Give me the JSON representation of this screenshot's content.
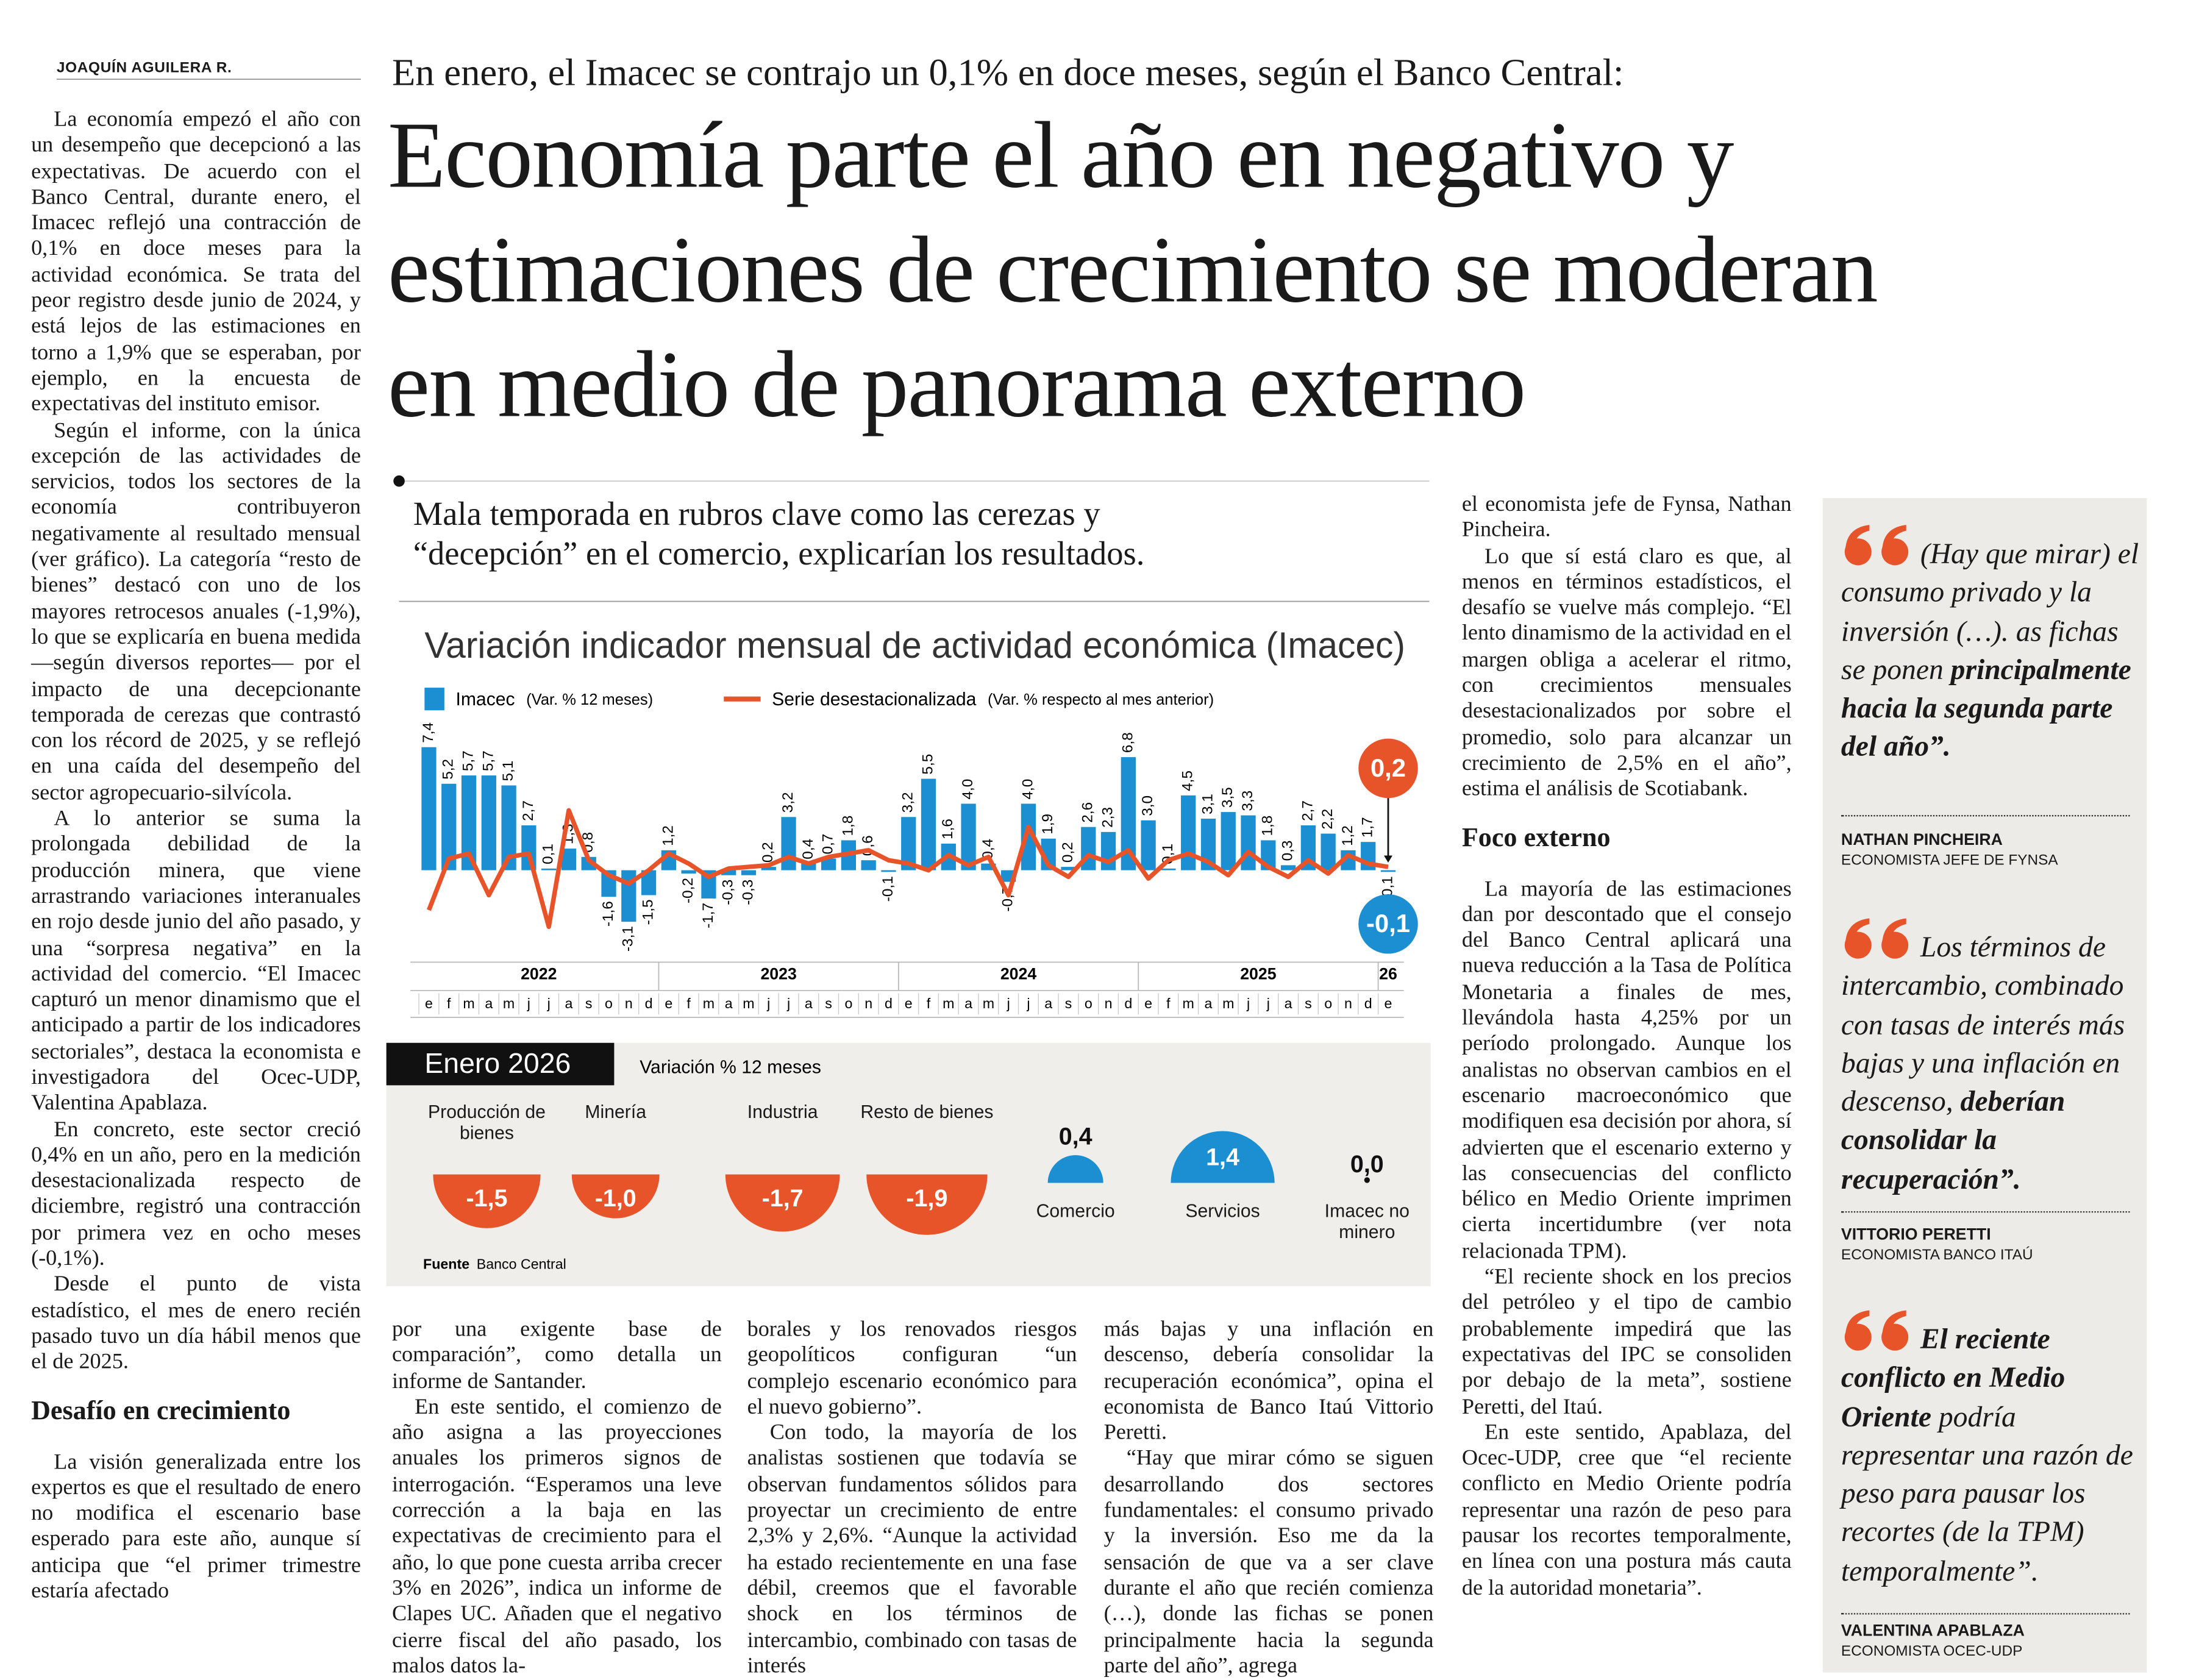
{
  "byline": "JOAQUÍN AGUILERA R.",
  "kicker": "En enero, el Imacec se contrajo un 0,1% en doce meses, según el Banco Central:",
  "headline_lines": [
    "Economía parte el año en negativo y",
    "estimaciones de crecimiento se moderan",
    "en medio de panorama externo"
  ],
  "deck_lines": [
    "Mala temporada en rubros clave como las cerezas y",
    "“decepción” en el comercio, explicarían los resultados."
  ],
  "columns": [
    {
      "blocks": [
        {
          "kind": "p",
          "text": "La economía empezó el año con un desempeño que decepcionó a las expectativas. De acuerdo con el Banco Central, durante enero, el Imacec reflejó una contracción de 0,1% en doce meses para la actividad económica. Se trata del peor registro desde junio de 2024, y está lejos de las estimaciones en torno a 1,9% que se esperaban, por ejemplo, en la encuesta de expectativas del instituto emisor."
        },
        {
          "kind": "p",
          "text": "Según el informe, con la única excepción de las actividades de servicios, todos los sectores de la economía contribuyeron negativamente al resultado mensual (ver gráfico). La categoría “resto de bienes” destacó con uno de los mayores retrocesos anuales (-1,9%), lo que se explicaría en buena medida —según diversos reportes— por el impacto de una decepcionante temporada de cerezas que contrastó con los récord de 2025, y se reflejó en una caída del desempeño del sector agropecuario-silvícola."
        },
        {
          "kind": "p",
          "text": "A lo anterior se suma la prolongada debilidad de la producción minera, que viene arrastrando variaciones interanuales en rojo desde junio del año pasado, y una “sorpresa negativa” en la actividad del comercio. “El Imacec capturó un menor dinamismo que el anticipado a partir de los indicadores sectoriales”, destaca la economista e investigadora del Ocec-UDP, Valentina Apablaza."
        },
        {
          "kind": "p",
          "text": "En concreto, este sector creció 0,4% en un año, pero en la medición desestacionalizada respecto de diciembre, registró una contracción por primera vez en ocho meses (-0,1%)."
        },
        {
          "kind": "p",
          "text": "Desde el punto de vista estadístico, el mes de enero recién pasado tuvo un día hábil menos que el de 2025."
        },
        {
          "kind": "subhead",
          "text": "Desafío en crecimiento"
        },
        {
          "kind": "p",
          "text": "La visión generalizada entre los expertos es que el resultado de enero no modifica el escenario base esperado para este año, aunque sí anticipa que “el primer trimestre estaría afectado"
        }
      ]
    },
    {
      "blocks": [
        {
          "kind": "p",
          "text": "por una exigente base de comparación”, como detalla un informe de Santander."
        },
        {
          "kind": "p",
          "text": "En este sentido, el comienzo de año asigna a las proyecciones anuales los primeros signos de interrogación. “Esperamos una leve corrección a la baja en las expectativas de crecimiento para el año, lo que pone cuesta arriba crecer 3% en 2026”, indica un informe de Clapes UC. Añaden que el negativo cierre fiscal del año pasado, los malos datos la-"
        }
      ]
    },
    {
      "blocks": [
        {
          "kind": "p",
          "text": "borales y los renovados riesgos geopolíticos configuran “un complejo escenario económico para el nuevo gobierno”."
        },
        {
          "kind": "p",
          "text": "Con todo, la mayoría de los analistas sostienen que todavía se observan fundamentos sólidos para proyectar un crecimiento de entre 2,3% y 2,6%. “Aunque la actividad ha estado recientemente en una fase débil, creemos que el favorable shock en los términos de intercambio, combinado con tasas de interés"
        }
      ]
    },
    {
      "blocks": [
        {
          "kind": "p",
          "text": "más bajas y una inflación en descenso, debería consolidar la recuperación económica”, opina el economista de Banco Itaú Vittorio Peretti."
        },
        {
          "kind": "p",
          "text": "“Hay que mirar cómo se siguen desarrollando dos sectores fundamentales: el consumo privado y la inversión. Eso me da la sensación de que va a ser clave durante el año que recién comienza (…), donde las fichas se ponen principalmente hacia la segunda parte del año”, agrega"
        }
      ]
    },
    {
      "blocks": [
        {
          "kind": "p",
          "text": "el economista jefe de Fynsa, Nathan Pincheira."
        },
        {
          "kind": "p",
          "text": "Lo que sí está claro es que, al menos en términos estadísticos, el desafío se vuelve más complejo. “El lento dinamismo de la actividad en el margen obliga a acelerar el ritmo, con crecimientos mensuales desestacionalizados por sobre el promedio, solo para alcanzar un crecimiento de 2,5% en el año”, estima el análisis de Scotiabank."
        },
        {
          "kind": "subhead",
          "text": "Foco externo"
        },
        {
          "kind": "p",
          "text": "La mayoría de las estimaciones dan por descontado que el consejo del Banco Central aplicará una nueva reducción a la Tasa de Política Monetaria a finales de mes, llevándola hasta 4,25% por un período prolongado. Aunque los analistas no observan cambios en el escenario macroeconómico que modifiquen esa decisión por ahora, sí advierten que el escenario externo y las consecuencias del conflicto bélico en Medio Oriente imprimen cierta incertidumbre (ver nota relacionada TPM)."
        },
        {
          "kind": "p",
          "text": "“El reciente shock en los precios del petróleo y el tipo de cambio probablemente impedirá que las expectativas del IPC se consoliden por debajo de la meta”, sostiene Peretti, del Itaú."
        },
        {
          "kind": "p",
          "text": "En este sentido, Apablaza, del Ocec-UDP, cree que “el reciente conflicto en Medio Oriente podría representar una razón de peso para pausar los recortes temporalmente, en línea con una postura más cauta de la autoridad monetaria”."
        }
      ]
    }
  ],
  "quotes": [
    {
      "parts": [
        {
          "text": "(Hay que mirar) el consumo privado y la inversión (…). as fichas se ponen ",
          "bold": false
        },
        {
          "text": "principalmente hacia la segunda parte del año”.",
          "bold": true
        }
      ],
      "name": "NATHAN PINCHEIRA",
      "role": "ECONOMISTA JEFE DE FYNSA"
    },
    {
      "parts": [
        {
          "text": "Los términos de intercambio, combinado con tasas de interés más bajas y una inflación en descenso, ",
          "bold": false
        },
        {
          "text": "deberían consolidar la recuperación”.",
          "bold": true
        }
      ],
      "name": "VITTORIO PERETTI",
      "role": "ECONOMISTA BANCO ITAÚ"
    },
    {
      "parts": [
        {
          "text": "El reciente conflicto en Medio Oriente ",
          "bold": true
        },
        {
          "text": "podría representar una razón de peso para pausar los recortes (de la TPM) temporalmente”.",
          "bold": false
        }
      ],
      "name": "VALENTINA APABLAZA",
      "role": "ECONOMISTA OCEC-UDP"
    }
  ],
  "chart_data": [
    {
      "type": "bar-line",
      "title": "Variación indicador mensual de actividad económica (Imacec)",
      "categories": [
        "e",
        "f",
        "m",
        "a",
        "m",
        "j",
        "j",
        "a",
        "s",
        "o",
        "n",
        "d",
        "e",
        "f",
        "m",
        "a",
        "m",
        "j",
        "j",
        "a",
        "s",
        "o",
        "n",
        "d",
        "e",
        "f",
        "m",
        "a",
        "m",
        "j",
        "j",
        "a",
        "s",
        "o",
        "n",
        "d",
        "e",
        "f",
        "m",
        "a",
        "m",
        "j",
        "j",
        "a",
        "s",
        "o",
        "n",
        "d",
        "e"
      ],
      "year_labels": [
        "2022",
        "2023",
        "2024",
        "2025",
        "26"
      ],
      "ylim": [
        -4,
        8
      ],
      "series": [
        {
          "name": "Imacec",
          "note": "(Var. % 12 meses)",
          "type": "bar",
          "color": "#1b8fd2",
          "values": [
            7.4,
            5.2,
            5.7,
            5.7,
            5.1,
            2.7,
            0.1,
            1.3,
            0.8,
            -1.6,
            -3.1,
            -1.5,
            1.2,
            -0.2,
            -1.7,
            -0.3,
            -0.3,
            0.2,
            3.2,
            0.4,
            0.7,
            1.8,
            0.6,
            -0.1,
            3.2,
            5.5,
            1.6,
            4.0,
            0.4,
            -0.7,
            4.0,
            1.9,
            0.2,
            2.6,
            2.3,
            6.8,
            3.0,
            0.1,
            4.5,
            3.1,
            3.5,
            3.3,
            1.8,
            0.3,
            2.7,
            2.2,
            1.2,
            1.7,
            -0.1
          ],
          "value_labels": [
            "7,4",
            "5,2",
            "5,7",
            "5,7",
            "5,1",
            "2,7",
            "0,1",
            "1,3",
            "0,8",
            "-1,6",
            "-3,1",
            "-1,5",
            "1,2",
            "-0,2",
            "-1,7",
            "-0,3",
            "-0,3",
            "0,2",
            "3,2",
            "0,4",
            "0,7",
            "1,8",
            "0,6",
            "-0,1",
            "3,2",
            "5,5",
            "1,6",
            "4,0",
            "0,4",
            "-0,7",
            "4,0",
            "1,9",
            "0,2",
            "2,6",
            "2,3",
            "6,8",
            "3,0",
            "0,1",
            "4,5",
            "3,1",
            "3,5",
            "3,3",
            "1,8",
            "0,3",
            "2,7",
            "2,2",
            "1,2",
            "1,7",
            "-0,1"
          ]
        },
        {
          "name": "Serie desestacionalizada",
          "note": "(Var. % respecto al mes anterior)",
          "type": "line",
          "color": "#e8542a",
          "values": [
            -2.4,
            0.7,
            1.0,
            -1.5,
            0.8,
            1.0,
            -3.4,
            3.6,
            0.6,
            -0.3,
            -0.8,
            0.0,
            1.0,
            0.4,
            -0.4,
            0.1,
            0.2,
            0.3,
            0.8,
            0.4,
            0.8,
            1.0,
            1.2,
            0.6,
            0.4,
            0.0,
            0.9,
            0.3,
            0.8,
            -1.5,
            2.6,
            0.3,
            -0.4,
            0.9,
            0.5,
            1.2,
            -0.5,
            0.6,
            1.0,
            0.5,
            -0.3,
            1.1,
            0.2,
            -0.4,
            0.6,
            -0.2,
            0.9,
            0.4,
            0.2
          ],
          "value_labels": [
            null,
            null,
            null,
            null,
            null,
            null,
            null,
            null,
            null,
            null,
            null,
            null,
            null,
            null,
            null,
            null,
            null,
            null,
            null,
            null,
            null,
            null,
            null,
            null,
            null,
            null,
            null,
            null,
            null,
            null,
            null,
            null,
            null,
            null,
            null,
            null,
            null,
            null,
            null,
            null,
            null,
            null,
            null,
            null,
            null,
            null,
            null,
            null,
            "0,2"
          ]
        }
      ]
    },
    {
      "type": "half-circle",
      "title": "Enero 2026",
      "subtitle": "Variación % 12 meses",
      "categories": [
        "Producción de bienes",
        "Minería",
        "Industria",
        "Resto de bienes",
        "Comercio",
        "Servicios",
        "Imacec no minero"
      ],
      "values": [
        -1.5,
        -1.0,
        -1.7,
        -1.9,
        0.4,
        1.4,
        0.0
      ],
      "value_labels": [
        "-1,5",
        "-1,0",
        "-1,7",
        "-1,9",
        "0,4",
        "1,4",
        "0,0"
      ],
      "negative_color": "#e8542a",
      "positive_color": "#1b8fd2",
      "source_label": "Fuente",
      "source": "Banco Central"
    }
  ]
}
